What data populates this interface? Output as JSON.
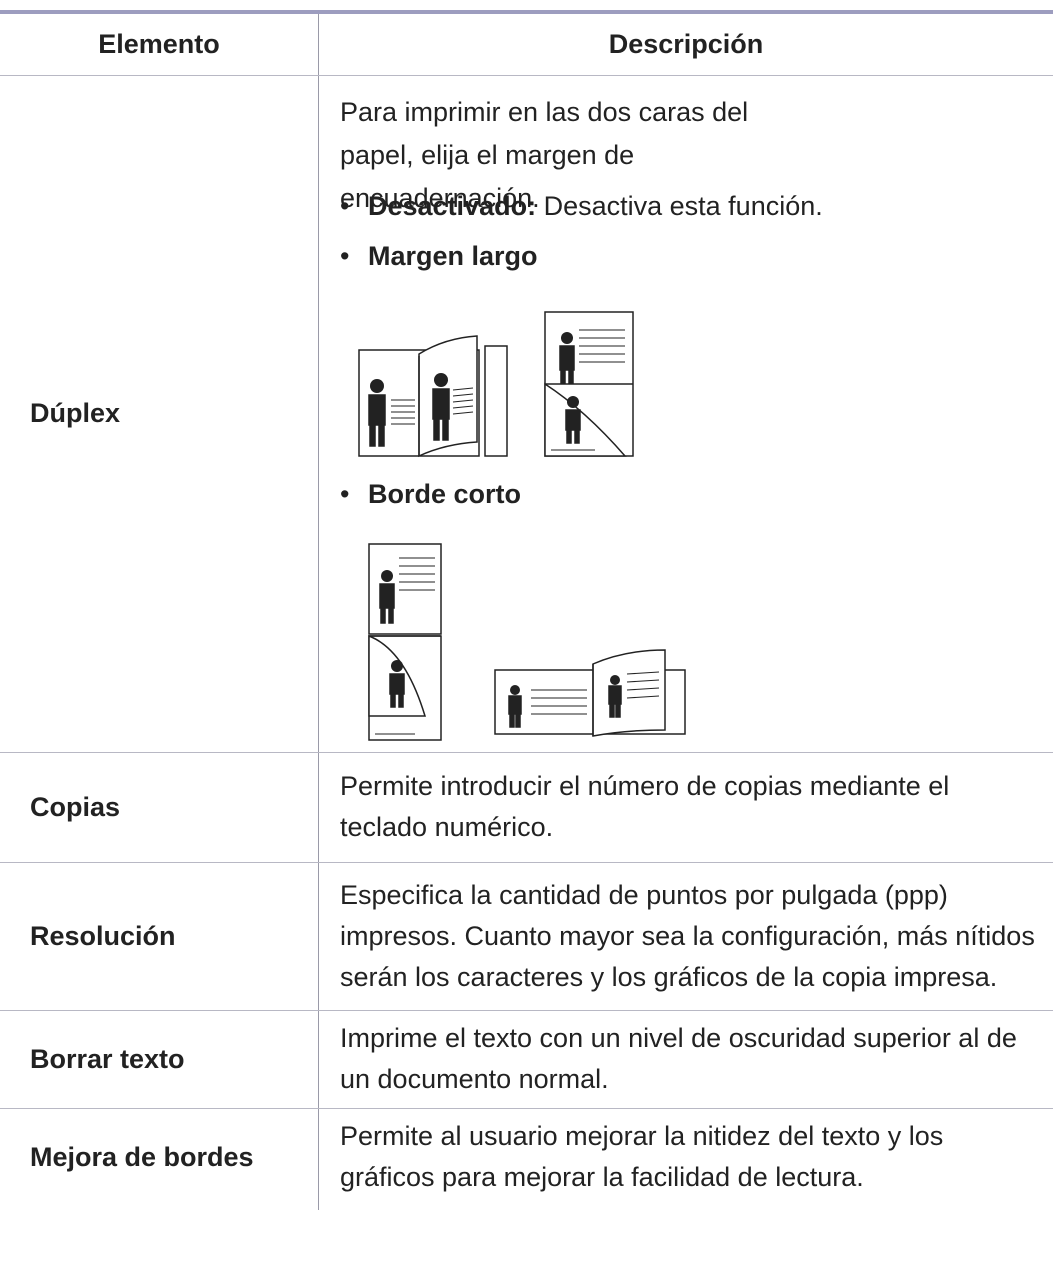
{
  "table": {
    "headers": [
      "Elemento",
      "Descripción"
    ],
    "rows": [
      {
        "item": "Dúplex",
        "description": "Para imprimir en las dos caras del papel, elija el margen de encuadernación.",
        "options": [
          {
            "label": "Desactivado:",
            "text": "Desactiva esta función."
          },
          {
            "label": "Margen largo"
          },
          {
            "label": "Borde corto"
          }
        ]
      },
      {
        "item": "Copias",
        "description": "Permite introducir el número de copias mediante el teclado numérico."
      },
      {
        "item": "Resolución",
        "description": "Especifica la cantidad de puntos por pulgada (ppp) impresos. Cuanto mayor sea la configuración, más nítidos serán los caracteres y los gráficos de la copia impresa."
      },
      {
        "item": "Borrar texto",
        "description": "Imprime el texto con un nivel de oscuridad superior al de un documento normal."
      },
      {
        "item": "Mejora de bordes",
        "description": "Permite al usuario mejorar la nitidez del texto y los gráficos para mejorar la facilidad de lectura."
      }
    ]
  }
}
